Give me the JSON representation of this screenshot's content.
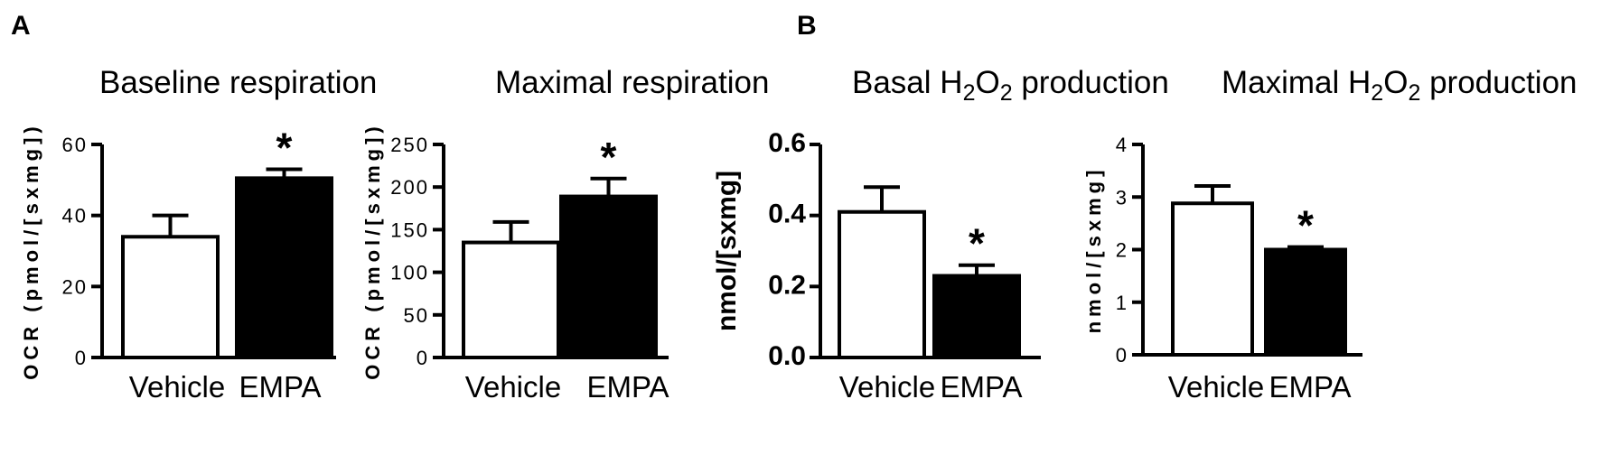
{
  "panels": [
    {
      "letter": "A"
    },
    {
      "letter": "B"
    }
  ],
  "chart_data": [
    {
      "type": "bar",
      "title": "Baseline respiration",
      "ylabel": "OCR (pmol/[sxmg])",
      "categories": [
        "Vehicle",
        "EMPA"
      ],
      "values": [
        34,
        50.5
      ],
      "errors": [
        6,
        2.5
      ],
      "significance": [
        "",
        "*"
      ],
      "yticks": [
        "0",
        "20",
        "40",
        "60"
      ],
      "ylim": [
        0,
        60
      ],
      "bar_colors": [
        "#ffffff",
        "#000000"
      ]
    },
    {
      "type": "bar",
      "title": "Maximal respiration",
      "ylabel": "OCR (pmol/[sxmg])",
      "categories": [
        "Vehicle",
        "EMPA"
      ],
      "values": [
        135,
        189
      ],
      "errors": [
        24,
        21
      ],
      "significance": [
        "",
        "*"
      ],
      "yticks": [
        "0",
        "50",
        "100",
        "150",
        "200",
        "250"
      ],
      "ylim": [
        0,
        250
      ],
      "bar_colors": [
        "#ffffff",
        "#000000"
      ]
    },
    {
      "type": "bar",
      "title": "Basal H2O2 production",
      "ylabel": "nmol/[sxmg]",
      "categories": [
        "Vehicle",
        "EMPA"
      ],
      "values": [
        0.41,
        0.23
      ],
      "errors": [
        0.07,
        0.03
      ],
      "significance": [
        "",
        "*"
      ],
      "yticks": [
        "0.0",
        "0.2",
        "0.4",
        "0.6"
      ],
      "ylim": [
        0,
        0.6
      ],
      "bar_colors": [
        "#ffffff",
        "#000000"
      ]
    },
    {
      "type": "bar",
      "title": "Maximal H2O2 production",
      "ylabel": "nmol/[sxmg]",
      "categories": [
        "Vehicle",
        "EMPA"
      ],
      "values": [
        2.88,
        2.0
      ],
      "errors": [
        0.33,
        0.05
      ],
      "significance": [
        "",
        "*"
      ],
      "yticks": [
        "0",
        "1",
        "2",
        "3",
        "4"
      ],
      "ylim": [
        0,
        4
      ],
      "bar_colors": [
        "#ffffff",
        "#000000"
      ]
    }
  ]
}
